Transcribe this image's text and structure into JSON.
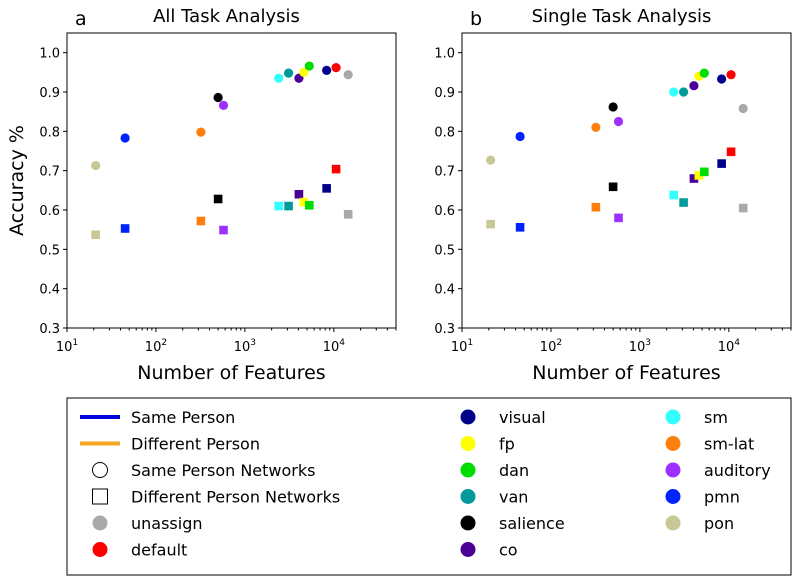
{
  "chart_data": [
    {
      "type": "scatter",
      "panel_label": "a",
      "title": "All Task Analysis",
      "xlabel": "Number of Features",
      "ylabel": "Accuracy %",
      "xscale": "log",
      "xlim": [
        10,
        50000
      ],
      "ylim": [
        0.3,
        1.05
      ],
      "x_ticks": [
        {
          "value": 10,
          "base": "10",
          "exp": "1"
        },
        {
          "value": 100,
          "base": "10",
          "exp": "2"
        },
        {
          "value": 1000,
          "base": "10",
          "exp": "3"
        },
        {
          "value": 10000,
          "base": "10",
          "exp": "4"
        }
      ],
      "y_ticks": [
        "0.3",
        "0.4",
        "0.5",
        "0.6",
        "0.7",
        "0.8",
        "0.9",
        "1.0"
      ],
      "grid": false,
      "series": [
        {
          "network": "pon",
          "x": 21,
          "same": 0.713,
          "different": 0.537
        },
        {
          "network": "pmn",
          "x": 45,
          "same": 0.783,
          "different": 0.553
        },
        {
          "network": "sm-lat",
          "x": 320,
          "same": 0.798,
          "different": 0.572
        },
        {
          "network": "salience",
          "x": 500,
          "same": 0.886,
          "different": 0.628
        },
        {
          "network": "auditory",
          "x": 575,
          "same": 0.866,
          "different": 0.549
        },
        {
          "network": "sm",
          "x": 2400,
          "same": 0.935,
          "different": 0.61
        },
        {
          "network": "van",
          "x": 3100,
          "same": 0.948,
          "different": 0.61
        },
        {
          "network": "co",
          "x": 4050,
          "same": 0.935,
          "different": 0.64
        },
        {
          "network": "fp",
          "x": 4600,
          "same": 0.95,
          "different": 0.62
        },
        {
          "network": "dan",
          "x": 5300,
          "same": 0.966,
          "different": 0.612
        },
        {
          "network": "visual",
          "x": 8300,
          "same": 0.955,
          "different": 0.655
        },
        {
          "network": "default",
          "x": 10600,
          "same": 0.962,
          "different": 0.704
        },
        {
          "network": "unassign",
          "x": 14500,
          "same": 0.944,
          "different": 0.589
        }
      ]
    },
    {
      "type": "scatter",
      "panel_label": "b",
      "title": "Single Task Analysis",
      "xlabel": "Number of Features",
      "ylabel": "",
      "xscale": "log",
      "xlim": [
        10,
        50000
      ],
      "ylim": [
        0.3,
        1.05
      ],
      "x_ticks": [
        {
          "value": 10,
          "base": "10",
          "exp": "1"
        },
        {
          "value": 100,
          "base": "10",
          "exp": "2"
        },
        {
          "value": 1000,
          "base": "10",
          "exp": "3"
        },
        {
          "value": 10000,
          "base": "10",
          "exp": "4"
        }
      ],
      "y_ticks": [
        "0.3",
        "0.4",
        "0.5",
        "0.6",
        "0.7",
        "0.8",
        "0.9",
        "1.0"
      ],
      "grid": false,
      "series": [
        {
          "network": "pon",
          "x": 21,
          "same": 0.727,
          "different": 0.564
        },
        {
          "network": "pmn",
          "x": 45,
          "same": 0.787,
          "different": 0.556
        },
        {
          "network": "sm-lat",
          "x": 320,
          "same": 0.81,
          "different": 0.607
        },
        {
          "network": "salience",
          "x": 500,
          "same": 0.862,
          "different": 0.659
        },
        {
          "network": "auditory",
          "x": 575,
          "same": 0.825,
          "different": 0.58
        },
        {
          "network": "sm",
          "x": 2400,
          "same": 0.9,
          "different": 0.638
        },
        {
          "network": "van",
          "x": 3100,
          "same": 0.9,
          "different": 0.619
        },
        {
          "network": "co",
          "x": 4050,
          "same": 0.916,
          "different": 0.68
        },
        {
          "network": "fp",
          "x": 4600,
          "same": 0.94,
          "different": 0.688
        },
        {
          "network": "dan",
          "x": 5300,
          "same": 0.948,
          "different": 0.697
        },
        {
          "network": "visual",
          "x": 8300,
          "same": 0.933,
          "different": 0.718
        },
        {
          "network": "default",
          "x": 10600,
          "same": 0.944,
          "different": 0.748
        },
        {
          "network": "unassign",
          "x": 14500,
          "same": 0.858,
          "different": 0.605
        }
      ]
    }
  ],
  "colors": {
    "visual": "#00008b",
    "fp": "#ffff00",
    "dan": "#00dd00",
    "van": "#009a9a",
    "salience": "#000000",
    "co": "#4b0096",
    "sm": "#33ffff",
    "sm-lat": "#ff7f0e",
    "auditory": "#9b30ff",
    "pmn": "#0022ff",
    "pon": "#c8c896",
    "unassign": "#a9a9a9",
    "default": "#ff0000",
    "same_person_line": "#0000dd",
    "different_person_line": "#f5a623"
  },
  "legend": {
    "position": "below",
    "columns": [
      [
        {
          "label": "Same Person",
          "kind": "line",
          "color_key": "same_person_line"
        },
        {
          "label": "Different Person",
          "kind": "line",
          "color_key": "different_person_line"
        },
        {
          "label": "Same Person Networks",
          "kind": "open-circle"
        },
        {
          "label": "Different Person Networks",
          "kind": "open-square"
        },
        {
          "label": "unassign",
          "kind": "dot",
          "color_key": "unassign"
        },
        {
          "label": "default",
          "kind": "dot",
          "color_key": "default"
        }
      ],
      [
        {
          "label": "visual",
          "kind": "dot",
          "color_key": "visual"
        },
        {
          "label": "fp",
          "kind": "dot",
          "color_key": "fp"
        },
        {
          "label": "dan",
          "kind": "dot",
          "color_key": "dan"
        },
        {
          "label": "van",
          "kind": "dot",
          "color_key": "van"
        },
        {
          "label": "salience",
          "kind": "dot",
          "color_key": "salience"
        },
        {
          "label": "co",
          "kind": "dot",
          "color_key": "co"
        }
      ],
      [
        {
          "label": "sm",
          "kind": "dot",
          "color_key": "sm"
        },
        {
          "label": "sm-lat",
          "kind": "dot",
          "color_key": "sm-lat"
        },
        {
          "label": "auditory",
          "kind": "dot",
          "color_key": "auditory"
        },
        {
          "label": "pmn",
          "kind": "dot",
          "color_key": "pmn"
        },
        {
          "label": "pon",
          "kind": "dot",
          "color_key": "pon"
        }
      ]
    ]
  }
}
